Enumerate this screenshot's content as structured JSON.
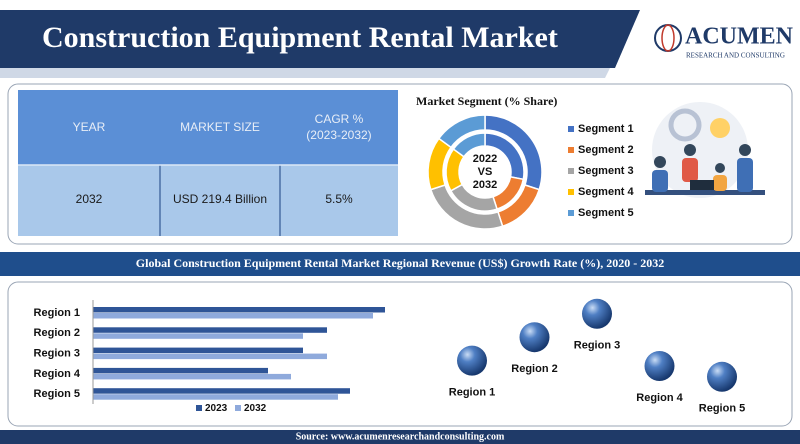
{
  "header": {
    "title": "Construction Equipment Rental Market",
    "logo": "ACUMEN",
    "logo_tagline": "RESEARCH AND CONSULTING"
  },
  "table": {
    "headers": [
      "YEAR",
      "MARKET SIZE",
      "CAGR %\n(2023-2032)"
    ],
    "rows": [
      [
        "2032",
        "USD 219.4 Billion",
        "5.5%"
      ]
    ]
  },
  "chart_data": [
    {
      "type": "donut",
      "title": "Market Segment (% Share)",
      "center_label": [
        "2022",
        "VS",
        "2032"
      ],
      "categories": [
        "Segment 1",
        "Segment 2",
        "Segment 3",
        "Segment 4",
        "Segment 5"
      ],
      "colors": [
        "#4472c4",
        "#ed7d31",
        "#a5a5a5",
        "#ffc000",
        "#5b9bd5"
      ],
      "series": [
        {
          "values": [
            30,
            15,
            25,
            15,
            15
          ]
        },
        {
          "values": [
            28,
            17,
            22,
            18,
            15
          ]
        }
      ]
    },
    {
      "type": "hbar",
      "title": "Global Construction Equipment Rental Market Regional Revenue (US$) Growth Rate (%), 2020 - 2032",
      "categories": [
        "Region 1",
        "Region 2",
        "Region 3",
        "Region 4",
        "Region 5"
      ],
      "series": [
        {
          "name": "2023",
          "color": "#2f5597",
          "values": [
            292,
            234,
            210,
            175,
            257
          ]
        },
        {
          "name": "2032",
          "color": "#8faadc",
          "values": [
            280,
            210,
            234,
            198,
            245
          ]
        }
      ],
      "xlim": [
        0,
        300
      ]
    },
    {
      "type": "bubble",
      "categories": [
        "Region 1",
        "Region 2",
        "Region 3",
        "Region 4",
        "Region 5"
      ],
      "values": [
        33,
        46,
        59,
        30,
        24
      ],
      "ylim": [
        0,
        100
      ],
      "color": "#2f5fa8"
    }
  ],
  "footer": {
    "source": "Source: www.acumenresearchandconsulting.com"
  }
}
